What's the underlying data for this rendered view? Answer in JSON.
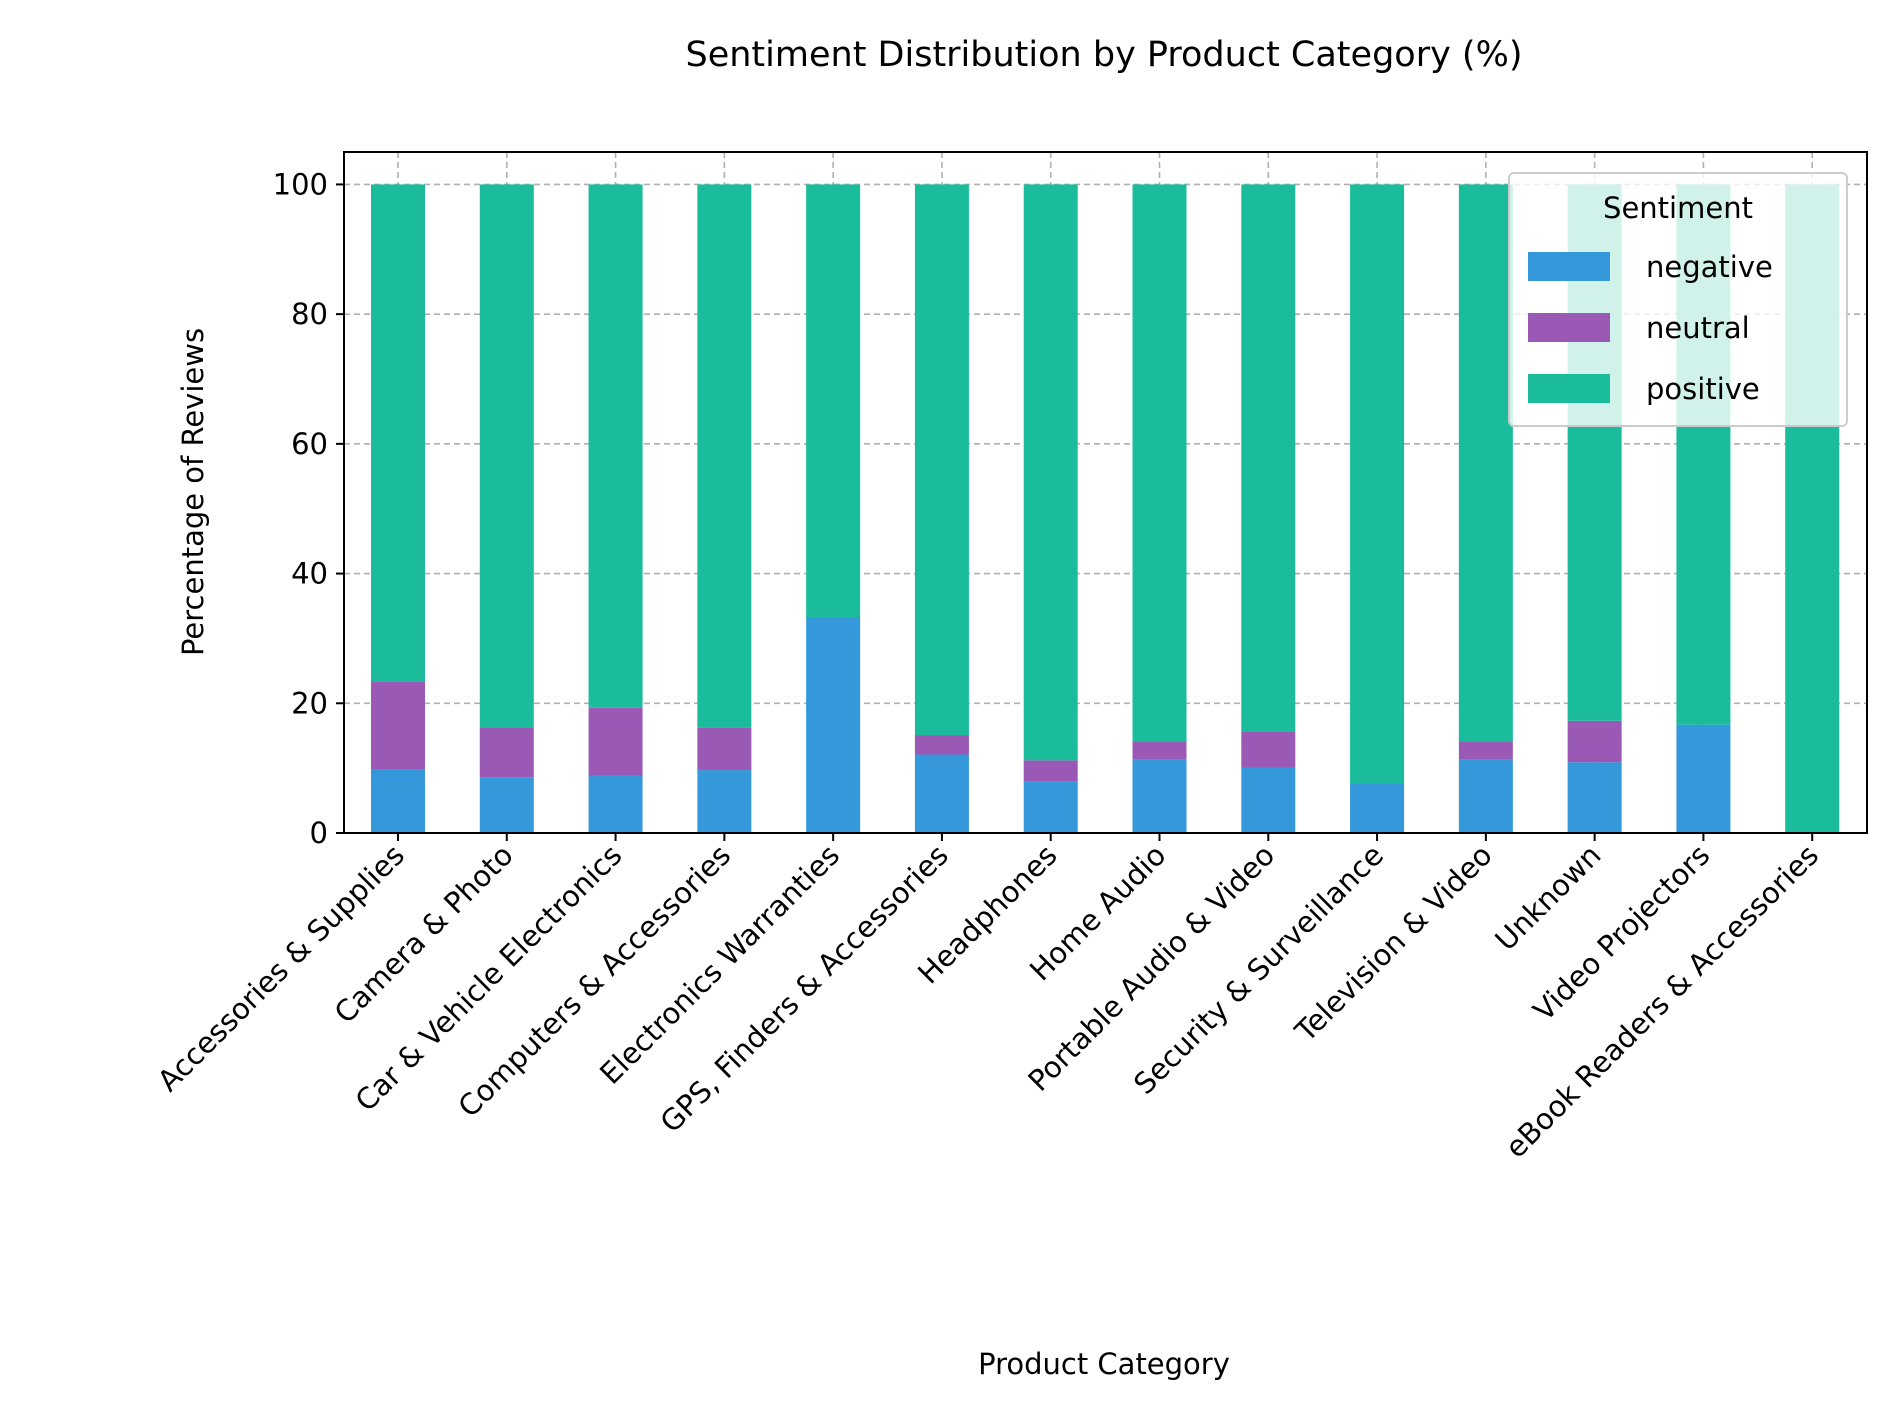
{
  "chart_data": {
    "type": "bar",
    "stacked": true,
    "title": "Sentiment Distribution by Product Category (%)",
    "xlabel": "Product Category",
    "ylabel": "Percentage of Reviews",
    "ylim": [
      0,
      105
    ],
    "yticks": [
      0,
      20,
      40,
      60,
      80,
      100
    ],
    "grid": true,
    "legend": {
      "title": "Sentiment",
      "placement": "top-right"
    },
    "categories": [
      "Accessories & Supplies",
      "Camera & Photo",
      "Car & Vehicle Electronics",
      "Computers & Accessories",
      "Electronics Warranties",
      "GPS, Finders & Accessories",
      "Headphones",
      "Home Audio",
      "Portable Audio & Video",
      "Security & Surveillance",
      "Television & Video",
      "Unknown",
      "Video Projectors",
      "eBook Readers & Accessories"
    ],
    "series": [
      {
        "name": "negative",
        "color": "#3498db",
        "values": [
          9.8,
          8.6,
          8.8,
          9.7,
          33.3,
          12.1,
          8.0,
          11.4,
          10.1,
          7.7,
          11.4,
          10.9,
          16.7,
          0.0
        ]
      },
      {
        "name": "neutral",
        "color": "#9b59b6",
        "values": [
          13.6,
          7.7,
          10.5,
          6.5,
          0.0,
          3.0,
          3.2,
          2.7,
          5.6,
          0.0,
          2.7,
          6.4,
          0.0,
          0.0
        ]
      },
      {
        "name": "positive",
        "color": "#1abc9c",
        "values": [
          76.6,
          83.7,
          80.7,
          83.8,
          66.7,
          84.9,
          88.8,
          85.9,
          84.3,
          92.3,
          85.9,
          82.7,
          83.3,
          100.0
        ]
      }
    ]
  }
}
